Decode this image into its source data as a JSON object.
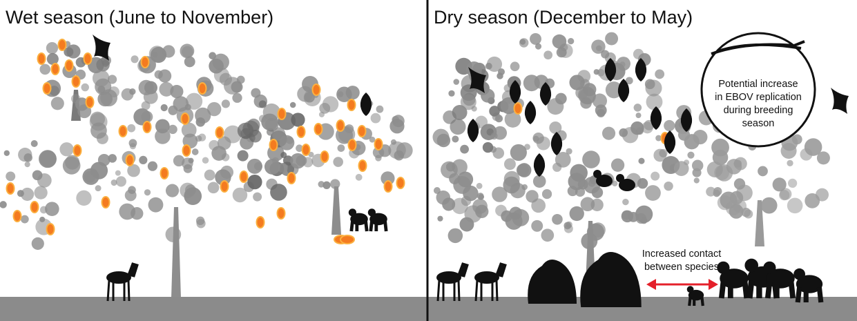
{
  "panels": [
    {
      "title": "Wet season (June to November)"
    },
    {
      "title": "Dry season (December to May)",
      "inset": {
        "lines": [
          "Potential increase",
          "in EBOV replication",
          "during breeding",
          "season"
        ]
      },
      "contact_label": {
        "lines": [
          "Increased contact",
          "between species"
        ]
      }
    }
  ]
}
